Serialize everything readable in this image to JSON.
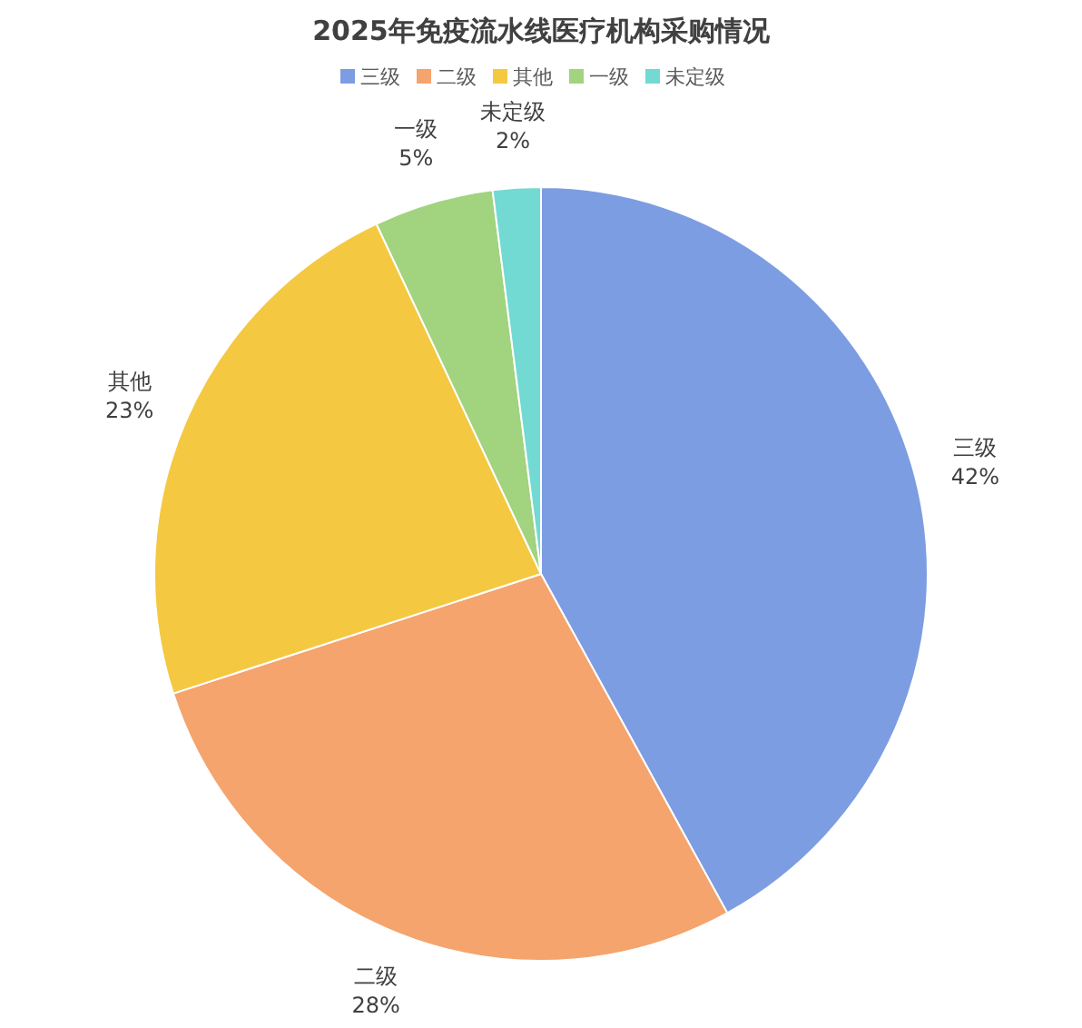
{
  "chart_data": {
    "type": "pie",
    "title": "2025年免疫流水线医疗机构采购情况",
    "categories": [
      "三级",
      "二级",
      "其他",
      "一级",
      "未定级"
    ],
    "values": [
      42,
      28,
      23,
      5,
      2
    ],
    "colors": [
      "#7d9de2",
      "#f4a46c",
      "#f5c842",
      "#a2d37f",
      "#72dad2"
    ],
    "value_labels": [
      "42%",
      "28%",
      "23%",
      "5%",
      "2%"
    ],
    "legend": "top"
  }
}
